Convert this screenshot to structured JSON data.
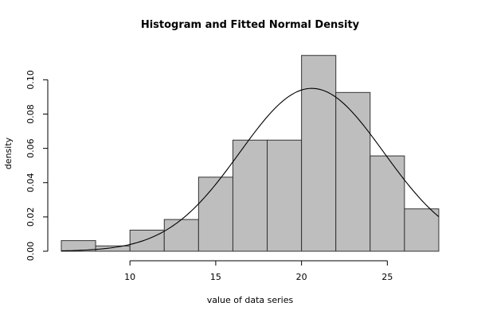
{
  "chart_data": {
    "type": "bar",
    "title": "Histogram and Fitted Normal Density",
    "xlabel": "value of data series",
    "ylabel": "density",
    "xlim": [
      6,
      28
    ],
    "ylim": [
      0,
      0.115
    ],
    "x_ticks": [
      10,
      15,
      20,
      25
    ],
    "y_ticks": [
      0.0,
      0.02,
      0.04,
      0.06,
      0.08,
      0.1
    ],
    "y_tick_labels": [
      "0.00",
      "0.02",
      "0.04",
      "0.06",
      "0.08",
      "0.10"
    ],
    "bins": [
      {
        "from": 6,
        "to": 8,
        "density": 0.0062
      },
      {
        "from": 8,
        "to": 10,
        "density": 0.0031
      },
      {
        "from": 10,
        "to": 12,
        "density": 0.0123
      },
      {
        "from": 12,
        "to": 14,
        "density": 0.0185
      },
      {
        "from": 14,
        "to": 16,
        "density": 0.0432
      },
      {
        "from": 16,
        "to": 18,
        "density": 0.0648
      },
      {
        "from": 18,
        "to": 20,
        "density": 0.0648
      },
      {
        "from": 20,
        "to": 22,
        "density": 0.1142
      },
      {
        "from": 22,
        "to": 24,
        "density": 0.0926
      },
      {
        "from": 24,
        "to": 26,
        "density": 0.0556
      },
      {
        "from": 26,
        "to": 28,
        "density": 0.0247
      }
    ],
    "normal_fit": {
      "mean": 20.6,
      "sd": 4.2
    },
    "bar_fill": "#bebebe",
    "bar_stroke": "#333333",
    "curve_color": "#000000",
    "grid": false,
    "legend": "none"
  }
}
